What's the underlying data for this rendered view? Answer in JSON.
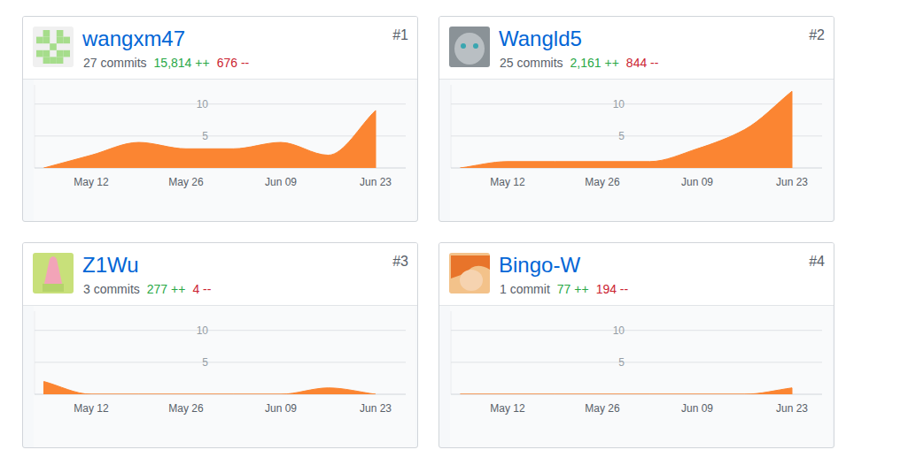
{
  "chart_data": [
    {
      "type": "area",
      "title": "wangxm47",
      "subtitle": "27 commits",
      "annotations": [
        "#1",
        "15,814 ++",
        "676 --"
      ],
      "categories": [
        null,
        "May 12",
        null,
        "May 26",
        null,
        "Jun 09",
        null,
        "Jun 23"
      ],
      "values": [
        0,
        2,
        4,
        3,
        3,
        4,
        2,
        9
      ],
      "color": "#fb8532",
      "ylim": [
        0,
        13
      ],
      "yticks": [
        5,
        10
      ],
      "grid": true
    },
    {
      "type": "area",
      "title": "Wangld5",
      "subtitle": "25 commits",
      "annotations": [
        "#2",
        "2,161 ++",
        "844 --"
      ],
      "categories": [
        null,
        "May 12",
        null,
        "May 26",
        null,
        "Jun 09",
        null,
        "Jun 23"
      ],
      "values": [
        0,
        1,
        1,
        1,
        1,
        3,
        6,
        12
      ],
      "color": "#fb8532",
      "ylim": [
        0,
        13
      ],
      "yticks": [
        5,
        10
      ],
      "grid": true
    },
    {
      "type": "area",
      "title": "Z1Wu",
      "subtitle": "3 commits",
      "annotations": [
        "#3",
        "277 ++",
        "4 --"
      ],
      "categories": [
        null,
        "May 12",
        null,
        "May 26",
        null,
        "Jun 09",
        null,
        "Jun 23"
      ],
      "values": [
        2,
        0,
        0,
        0,
        0,
        0,
        1,
        0
      ],
      "color": "#fb8532",
      "ylim": [
        0,
        13
      ],
      "yticks": [
        5,
        10
      ],
      "grid": true
    },
    {
      "type": "area",
      "title": "Bingo-W",
      "subtitle": "1 commit",
      "annotations": [
        "#4",
        "77 ++",
        "194 --"
      ],
      "categories": [
        null,
        "May 12",
        null,
        "May 26",
        null,
        "Jun 09",
        null,
        "Jun 23"
      ],
      "values": [
        0,
        0,
        0,
        0,
        0,
        0,
        0,
        1
      ],
      "color": "#fb8532",
      "ylim": [
        0,
        13
      ],
      "yticks": [
        5,
        10
      ],
      "grid": true
    }
  ]
}
